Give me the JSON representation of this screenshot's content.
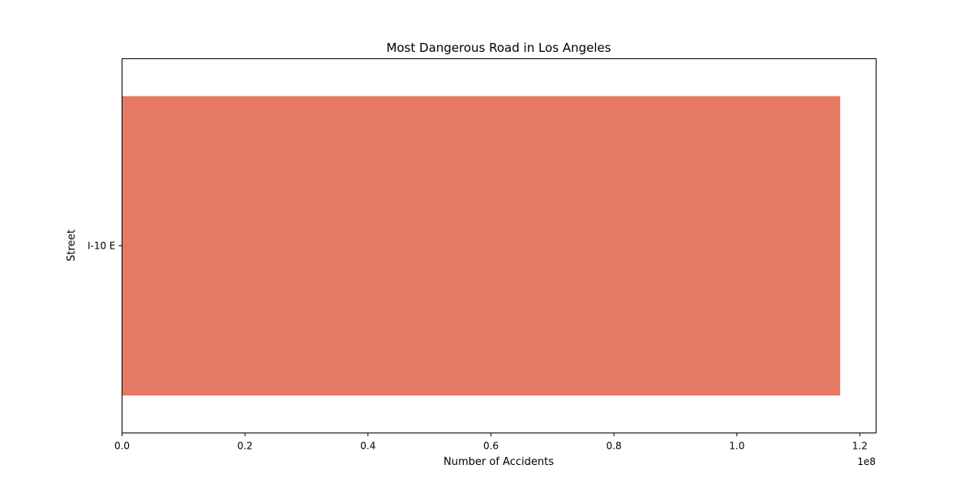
{
  "chart_data": {
    "type": "bar",
    "orientation": "horizontal",
    "title": "Most Dangerous Road in Los Angeles",
    "xlabel": "Number of Accidents",
    "ylabel": "Street",
    "categories": [
      "I-10 E"
    ],
    "values": [
      116800000
    ],
    "xlim": [
      0,
      122640000
    ],
    "xticks": [
      0,
      20000000,
      40000000,
      60000000,
      80000000,
      100000000,
      120000000
    ],
    "xtick_labels": [
      "0.0",
      "0.2",
      "0.4",
      "0.6",
      "0.8",
      "1.0",
      "1.2"
    ],
    "offset_label": "1e8",
    "bar_color": "#e67963",
    "grid": false,
    "legend": "none"
  }
}
